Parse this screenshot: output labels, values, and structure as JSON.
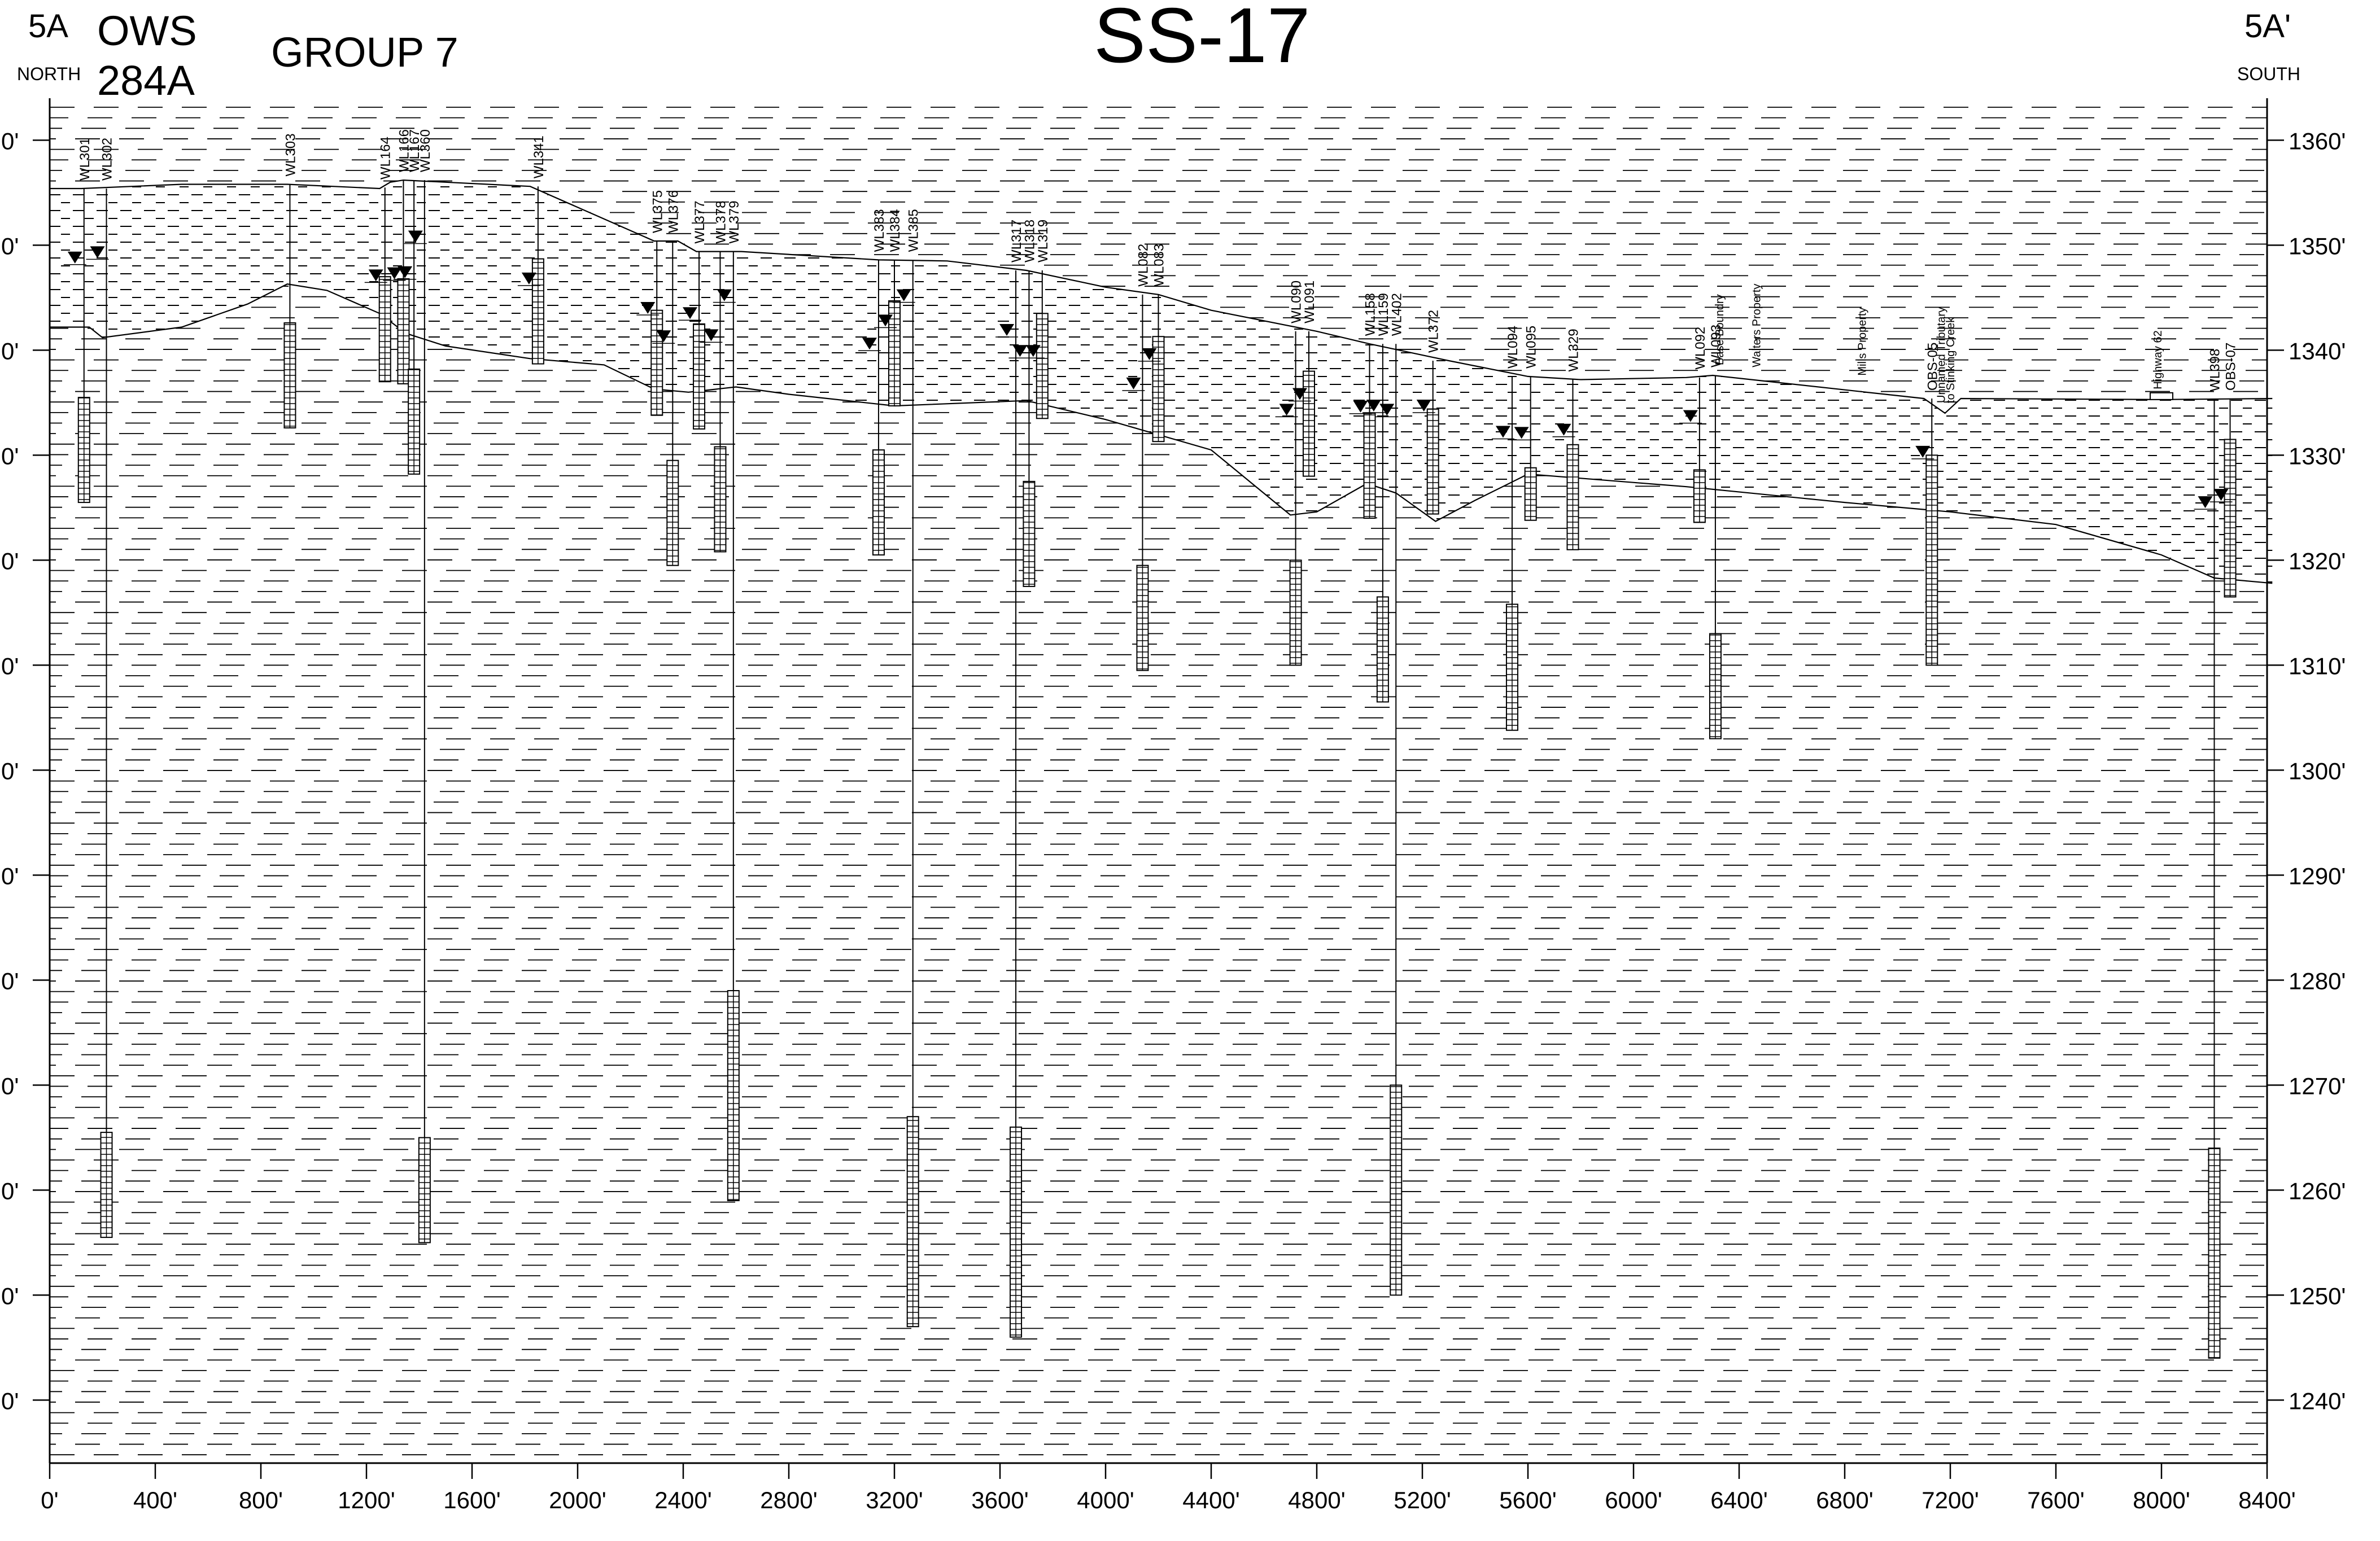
{
  "header": {
    "start_section": "5A",
    "start_direction": "NORTH",
    "title_line1": "OWS",
    "title_line2": "284A",
    "group": "GROUP 7",
    "main_title": "SS-17",
    "end_section": "5A'",
    "end_direction": "SOUTH"
  },
  "chart_data": {
    "type": "cross-section",
    "x_ticks": [
      "0'",
      "400'",
      "800'",
      "1200'",
      "1600'",
      "2000'",
      "2400'",
      "2800'",
      "3200'",
      "3600'",
      "4000'",
      "4400'",
      "4800'",
      "5200'",
      "5600'",
      "6000'",
      "6400'",
      "6800'",
      "7200'",
      "7600'",
      "8000'",
      "8400'"
    ],
    "y_ticks": [
      "1360'",
      "1350'",
      "1340'",
      "1330'",
      "1320'",
      "1310'",
      "1300'",
      "1290'",
      "1280'",
      "1270'",
      "1260'",
      "1250'",
      "1240'"
    ],
    "y_ticks_left": [
      "0'",
      "0'",
      "0'",
      "0'",
      "0'",
      "0'",
      "0'",
      "0'",
      "0'",
      "0'",
      "0'",
      "0'",
      "0'"
    ],
    "xlim": [
      0,
      8400
    ],
    "ylim": [
      1234,
      1364
    ],
    "ground_surface": [
      [
        0,
        1355.4
      ],
      [
        120,
        1355.4
      ],
      [
        500,
        1355.8
      ],
      [
        900,
        1355.8
      ],
      [
        1250,
        1355.4
      ],
      [
        1290,
        1356
      ],
      [
        1340,
        1356.2
      ],
      [
        1820,
        1355.6
      ],
      [
        2290,
        1350.4
      ],
      [
        2380,
        1350.4
      ],
      [
        2450,
        1349.4
      ],
      [
        2500,
        1349.4
      ],
      [
        2620,
        1349.4
      ],
      [
        3140,
        1348.6
      ],
      [
        3400,
        1348.5
      ],
      [
        3700,
        1347.6
      ],
      [
        4000,
        1346
      ],
      [
        4200,
        1345.3
      ],
      [
        4400,
        1343.8
      ],
      [
        4800,
        1341.8
      ],
      [
        5000,
        1340.6
      ],
      [
        5300,
        1339
      ],
      [
        5600,
        1337.5
      ],
      [
        5800,
        1337.2
      ],
      [
        6200,
        1337.4
      ],
      [
        6300,
        1337.6
      ],
      [
        7100,
        1335.4
      ],
      [
        7180,
        1334
      ],
      [
        7240,
        1335.4
      ],
      [
        8000,
        1335.3
      ],
      [
        8420,
        1335.4
      ]
    ],
    "interface_boundary": [
      [
        0,
        1342.2
      ],
      [
        150,
        1342.2
      ],
      [
        200,
        1341.2
      ],
      [
        500,
        1342.2
      ],
      [
        750,
        1344.4
      ],
      [
        900,
        1346.3
      ],
      [
        1050,
        1345.7
      ],
      [
        1250,
        1343.5
      ],
      [
        1350,
        1341.6
      ],
      [
        1500,
        1340.4
      ],
      [
        1820,
        1339.2
      ],
      [
        2100,
        1338.6
      ],
      [
        2290,
        1336.3
      ],
      [
        2420,
        1336
      ],
      [
        2600,
        1336.5
      ],
      [
        2800,
        1335.8
      ],
      [
        3200,
        1334.7
      ],
      [
        3700,
        1335.2
      ],
      [
        4000,
        1333.4
      ],
      [
        4400,
        1330.5
      ],
      [
        4700,
        1324.3
      ],
      [
        4800,
        1324.6
      ],
      [
        4990,
        1327.3
      ],
      [
        5100,
        1326.4
      ],
      [
        5250,
        1323.7
      ],
      [
        5400,
        1325.7
      ],
      [
        5600,
        1328.2
      ],
      [
        5800,
        1327.8
      ],
      [
        6200,
        1327
      ],
      [
        6800,
        1325.5
      ],
      [
        7200,
        1324.6
      ],
      [
        7600,
        1323.4
      ],
      [
        8000,
        1320.5
      ],
      [
        8200,
        1318.3
      ],
      [
        8420,
        1317.8
      ]
    ],
    "wells": [
      {
        "name": "WL301",
        "x": 130,
        "top": 1355.4,
        "screen_top": 1335.5,
        "screen_bottom": 1325.5,
        "water_level": 1348.8
      },
      {
        "name": "WL302",
        "x": 215,
        "top": 1355.4,
        "screen_top": 1265.5,
        "screen_bottom": 1255.5,
        "water_level": 1349.3
      },
      {
        "name": "WL303",
        "x": 910,
        "top": 1355.8,
        "screen_top": 1342.6,
        "screen_bottom": 1332.6
      },
      {
        "name": "WL164",
        "x": 1270,
        "top": 1355.5,
        "screen_top": 1347,
        "screen_bottom": 1337,
        "water_level": 1347.1
      },
      {
        "name": "WL166",
        "x": 1340,
        "top": 1356.2,
        "screen_top": 1346.8,
        "screen_bottom": 1336.8,
        "water_level": 1347.3
      },
      {
        "name": "WL167",
        "x": 1380,
        "top": 1356.2,
        "screen_top": 1338.2,
        "screen_bottom": 1328.2,
        "water_level": 1347.4
      },
      {
        "name": "WL360",
        "x": 1420,
        "top": 1356.2,
        "screen_top": 1265,
        "screen_bottom": 1255,
        "water_level": 1350.8
      },
      {
        "name": "WL341",
        "x": 1850,
        "top": 1355.6,
        "screen_top": 1348.7,
        "screen_bottom": 1338.7,
        "water_level": 1346.8
      },
      {
        "name": "WL375",
        "x": 2300,
        "top": 1350.4,
        "screen_top": 1343.8,
        "screen_bottom": 1333.8,
        "water_level": 1344
      },
      {
        "name": "WL376",
        "x": 2360,
        "top": 1350.4,
        "screen_top": 1329.5,
        "screen_bottom": 1319.5,
        "water_level": 1341.3
      },
      {
        "name": "WL377",
        "x": 2460,
        "top": 1349.4,
        "screen_top": 1342.5,
        "screen_bottom": 1332.5,
        "water_level": 1343.5
      },
      {
        "name": "WL378",
        "x": 2540,
        "top": 1349.4,
        "screen_top": 1330.8,
        "screen_bottom": 1320.8,
        "water_level": 1341.4
      },
      {
        "name": "WL379",
        "x": 2590,
        "top": 1349.4,
        "screen_top": 1279,
        "screen_bottom": 1259,
        "water_level": 1345.2
      },
      {
        "name": "WL383",
        "x": 3140,
        "top": 1348.6,
        "screen_top": 1330.5,
        "screen_bottom": 1320.5,
        "water_level": 1340.6
      },
      {
        "name": "WL384",
        "x": 3200,
        "top": 1348.6,
        "screen_top": 1344.7,
        "screen_bottom": 1334.7,
        "water_level": 1342.8
      },
      {
        "name": "WL385",
        "x": 3270,
        "top": 1348.6,
        "screen_top": 1267,
        "screen_bottom": 1247,
        "water_level": 1345.2
      },
      {
        "name": "WL317",
        "x": 3660,
        "top": 1347.6,
        "screen_top": 1266,
        "screen_bottom": 1246,
        "water_level": 1341.9
      },
      {
        "name": "WL318",
        "x": 3710,
        "top": 1347.6,
        "screen_top": 1327.5,
        "screen_bottom": 1317.5,
        "water_level": 1339.9
      },
      {
        "name": "WL319",
        "x": 3760,
        "top": 1347.6,
        "screen_top": 1343.5,
        "screen_bottom": 1333.5,
        "water_level": 1339.9
      },
      {
        "name": "WL082",
        "x": 4140,
        "top": 1345.3,
        "screen_top": 1319.5,
        "screen_bottom": 1309.5,
        "water_level": 1336.8
      },
      {
        "name": "WL083",
        "x": 4200,
        "top": 1345.3,
        "screen_top": 1341.3,
        "screen_bottom": 1331.3,
        "water_level": 1339.6
      },
      {
        "name": "WL090",
        "x": 4720,
        "top": 1341.8,
        "screen_top": 1320,
        "screen_bottom": 1310,
        "water_level": 1334.3
      },
      {
        "name": "WL091",
        "x": 4770,
        "top": 1341.8,
        "screen_top": 1338,
        "screen_bottom": 1328,
        "water_level": 1335.8
      },
      {
        "name": "WL158",
        "x": 5000,
        "top": 1340.6,
        "screen_top": 1334,
        "screen_bottom": 1324,
        "water_level": 1334.6
      },
      {
        "name": "WL159",
        "x": 5050,
        "top": 1340.6,
        "screen_top": 1316.5,
        "screen_bottom": 1306.5,
        "water_level": 1334.7
      },
      {
        "name": "WL402",
        "x": 5100,
        "top": 1340.6,
        "screen_top": 1270,
        "screen_bottom": 1250,
        "water_level": 1334.3
      },
      {
        "name": "WL372",
        "x": 5240,
        "top": 1339,
        "screen_top": 1334.4,
        "screen_bottom": 1324.4,
        "water_level": 1334.7
      },
      {
        "name": "WL094",
        "x": 5540,
        "top": 1337.5,
        "screen_top": 1315.8,
        "screen_bottom": 1303.8,
        "water_level": 1332.2
      },
      {
        "name": "WL095",
        "x": 5610,
        "top": 1337.5,
        "screen_top": 1328.8,
        "screen_bottom": 1323.8,
        "water_level": 1332.1
      },
      {
        "name": "WL329",
        "x": 5770,
        "top": 1337.2,
        "screen_top": 1331,
        "screen_bottom": 1321,
        "water_level": 1332.4
      },
      {
        "name": "WL092",
        "x": 6250,
        "top": 1337.4,
        "screen_top": 1328.6,
        "screen_bottom": 1323.6,
        "water_level": 1333.7
      },
      {
        "name": "WL093",
        "x": 6310,
        "top": 1337.6,
        "screen_top": 1313,
        "screen_bottom": 1303,
        "water_level": null
      },
      {
        "name": "OBS-05",
        "x": 7130,
        "top": 1335.4,
        "screen_top": 1330,
        "screen_bottom": 1310,
        "water_level": 1330.3
      },
      {
        "name": "WL398",
        "x": 8200,
        "top": 1335.3,
        "screen_top": 1264,
        "screen_bottom": 1244,
        "water_level": 1325.5
      },
      {
        "name": "OBS-07",
        "x": 8260,
        "top": 1335.4,
        "screen_top": 1331.5,
        "screen_bottom": 1316.5,
        "water_level": 1326.2
      }
    ],
    "annotations": [
      {
        "label": "Base Boundry",
        "x": 6340,
        "elev": 1337.6
      },
      {
        "label": "Walters Property",
        "x": 6480,
        "elev": 1337.4
      },
      {
        "label": "Mills Property",
        "x": 6880,
        "elev": 1336.6
      },
      {
        "label": "Unnamed Tributary",
        "x": 7180,
        "elev": 1334
      },
      {
        "label": "to Stinking Creek",
        "x": 7215,
        "elev": 1334
      },
      {
        "label": "Highway 62",
        "x": 8000,
        "elev": 1335.3
      }
    ]
  }
}
